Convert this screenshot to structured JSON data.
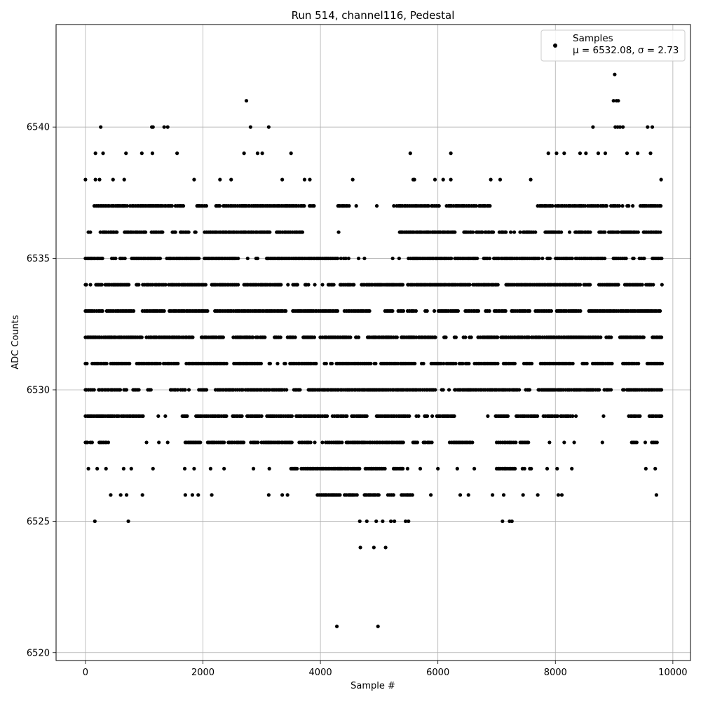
{
  "chart_data": {
    "type": "scatter",
    "title": "Run 514, channel116, Pedestal",
    "xlabel": "Sample #",
    "ylabel": "ADC Counts",
    "xlim": [
      -500,
      10300
    ],
    "ylim": [
      6519.7,
      6543.9
    ],
    "x_ticks": [
      0,
      2000,
      4000,
      6000,
      8000,
      10000
    ],
    "y_ticks": [
      6520,
      6525,
      6530,
      6535,
      6540
    ],
    "grid": true,
    "legend": {
      "placement": "top-right",
      "entries": [
        {
          "label": "Samples",
          "stats": "μ = 6532.08, σ = 2.73"
        }
      ]
    },
    "colors": {
      "marker": "#000000",
      "grid": "#b0b0b0",
      "frame": "#000000"
    },
    "series": [
      {
        "name": "Samples",
        "band_note": "dense sampling: integer ADC levels, each level populated over listed sample ranges",
        "bands": [
          {
            "y": 6537,
            "ranges": [
              [
                150,
                1700
              ],
              [
                1900,
                3900
              ],
              [
                4300,
                4500
              ],
              [
                5300,
                6900
              ],
              [
                7700,
                9820
              ]
            ]
          },
          {
            "y": 6536,
            "ranges": [
              [
                50,
                3700
              ],
              [
                5350,
                7200
              ],
              [
                7400,
                9800
              ]
            ]
          },
          {
            "y": 6535,
            "ranges": [
              [
                0,
                4450
              ],
              [
                5500,
                9820
              ]
            ]
          },
          {
            "y": 6534,
            "ranges": [
              [
                0,
                4600
              ],
              [
                4700,
                9820
              ]
            ]
          },
          {
            "y": 6533,
            "ranges": [
              [
                0,
                4900
              ],
              [
                5100,
                9820
              ]
            ]
          },
          {
            "y": 6532,
            "ranges": [
              [
                0,
                8980
              ],
              [
                9100,
                9820
              ]
            ]
          },
          {
            "y": 6531,
            "ranges": [
              [
                0,
                9060
              ],
              [
                9150,
                9820
              ]
            ]
          },
          {
            "y": 6530,
            "ranges": [
              [
                0,
                1150
              ],
              [
                1450,
                8980
              ],
              [
                9150,
                9820
              ]
            ]
          },
          {
            "y": 6529,
            "ranges": [
              [
                0,
                1000
              ],
              [
                1650,
                6300
              ],
              [
                6850,
                8300
              ],
              [
                9250,
                9820
              ]
            ]
          },
          {
            "y": 6528,
            "ranges": [
              [
                0,
                400
              ],
              [
                1700,
                5900
              ],
              [
                6200,
                6600
              ],
              [
                7000,
                7600
              ],
              [
                9300,
                9750
              ]
            ]
          },
          {
            "y": 6527,
            "ranges": [
              [
                3500,
                5500
              ],
              [
                7000,
                7600
              ]
            ]
          },
          {
            "y": 6526,
            "ranges": [
              [
                3950,
                5600
              ]
            ]
          }
        ],
        "points": [
          [
            260,
            6540
          ],
          [
            1130,
            6540
          ],
          [
            1150,
            6540
          ],
          [
            1340,
            6540
          ],
          [
            1400,
            6540
          ],
          [
            2740,
            6541
          ],
          [
            2810,
            6540
          ],
          [
            3120,
            6540
          ],
          [
            8640,
            6540
          ],
          [
            8990,
            6541
          ],
          [
            9010,
            6542
          ],
          [
            9040,
            6541
          ],
          [
            9070,
            6541
          ],
          [
            9100,
            6540
          ],
          [
            9150,
            6540
          ],
          [
            9570,
            6540
          ],
          [
            9650,
            6540
          ],
          [
            9020,
            6540
          ],
          [
            9060,
            6540
          ],
          [
            170,
            6539
          ],
          [
            300,
            6539
          ],
          [
            690,
            6539
          ],
          [
            960,
            6539
          ],
          [
            1140,
            6539
          ],
          [
            1560,
            6539
          ],
          [
            2700,
            6539
          ],
          [
            2930,
            6539
          ],
          [
            3010,
            6539
          ],
          [
            3500,
            6539
          ],
          [
            5530,
            6539
          ],
          [
            6220,
            6539
          ],
          [
            7880,
            6539
          ],
          [
            8020,
            6539
          ],
          [
            8150,
            6539
          ],
          [
            8420,
            6539
          ],
          [
            8520,
            6539
          ],
          [
            8730,
            6539
          ],
          [
            8850,
            6539
          ],
          [
            9220,
            6539
          ],
          [
            9400,
            6539
          ],
          [
            9620,
            6539
          ],
          [
            0,
            6538
          ],
          [
            170,
            6538
          ],
          [
            240,
            6538
          ],
          [
            470,
            6538
          ],
          [
            660,
            6538
          ],
          [
            1850,
            6538
          ],
          [
            2290,
            6538
          ],
          [
            2480,
            6538
          ],
          [
            3350,
            6538
          ],
          [
            3730,
            6538
          ],
          [
            3820,
            6538
          ],
          [
            4550,
            6538
          ],
          [
            5580,
            6538
          ],
          [
            5600,
            6538
          ],
          [
            5950,
            6538
          ],
          [
            6090,
            6538
          ],
          [
            6220,
            6538
          ],
          [
            6900,
            6538
          ],
          [
            7060,
            6538
          ],
          [
            7580,
            6538
          ],
          [
            9800,
            6538
          ],
          [
            160,
            6525
          ],
          [
            730,
            6525
          ],
          [
            4670,
            6525
          ],
          [
            4790,
            6525
          ],
          [
            4950,
            6525
          ],
          [
            5060,
            6525
          ],
          [
            5200,
            6525
          ],
          [
            5260,
            6525
          ],
          [
            5450,
            6525
          ],
          [
            5500,
            6525
          ],
          [
            7100,
            6525
          ],
          [
            7220,
            6525
          ],
          [
            7260,
            6525
          ],
          [
            4680,
            6524
          ],
          [
            4910,
            6524
          ],
          [
            5110,
            6524
          ],
          [
            4280,
            6521
          ],
          [
            4980,
            6521
          ],
          [
            430,
            6526
          ],
          [
            600,
            6526
          ],
          [
            700,
            6526
          ],
          [
            970,
            6526
          ],
          [
            1700,
            6526
          ],
          [
            1820,
            6526
          ],
          [
            1920,
            6526
          ],
          [
            2150,
            6526
          ],
          [
            3120,
            6526
          ],
          [
            3350,
            6526
          ],
          [
            3440,
            6526
          ],
          [
            5880,
            6526
          ],
          [
            6380,
            6526
          ],
          [
            6520,
            6526
          ],
          [
            6930,
            6526
          ],
          [
            7120,
            6526
          ],
          [
            7450,
            6526
          ],
          [
            7700,
            6526
          ],
          [
            8050,
            6526
          ],
          [
            8110,
            6526
          ],
          [
            9720,
            6526
          ],
          [
            50,
            6527
          ],
          [
            200,
            6527
          ],
          [
            350,
            6527
          ],
          [
            650,
            6527
          ],
          [
            780,
            6527
          ],
          [
            1150,
            6527
          ],
          [
            1690,
            6527
          ],
          [
            1850,
            6527
          ],
          [
            2130,
            6527
          ],
          [
            2360,
            6527
          ],
          [
            2860,
            6527
          ],
          [
            3130,
            6527
          ],
          [
            5700,
            6527
          ],
          [
            6000,
            6527
          ],
          [
            6330,
            6527
          ],
          [
            6620,
            6527
          ],
          [
            7860,
            6527
          ],
          [
            8030,
            6527
          ],
          [
            8280,
            6527
          ],
          [
            9540,
            6527
          ],
          [
            9700,
            6527
          ],
          [
            7900,
            6528
          ],
          [
            8150,
            6528
          ],
          [
            8320,
            6528
          ],
          [
            8800,
            6528
          ],
          [
            8820,
            6529
          ],
          [
            8350,
            6529
          ],
          [
            8100,
            6529
          ],
          [
            1250,
            6528
          ],
          [
            1400,
            6528
          ],
          [
            1040,
            6528
          ],
          [
            1240,
            6529
          ],
          [
            1360,
            6529
          ],
          [
            4350,
            6535
          ],
          [
            4480,
            6535
          ],
          [
            4650,
            6535
          ],
          [
            4750,
            6535
          ],
          [
            5230,
            6535
          ],
          [
            5340,
            6535
          ],
          [
            4310,
            6536
          ],
          [
            5370,
            6536
          ],
          [
            7240,
            6536
          ],
          [
            7300,
            6536
          ],
          [
            4320,
            6537
          ],
          [
            4610,
            6537
          ],
          [
            4960,
            6537
          ],
          [
            5250,
            6537
          ]
        ]
      }
    ]
  }
}
